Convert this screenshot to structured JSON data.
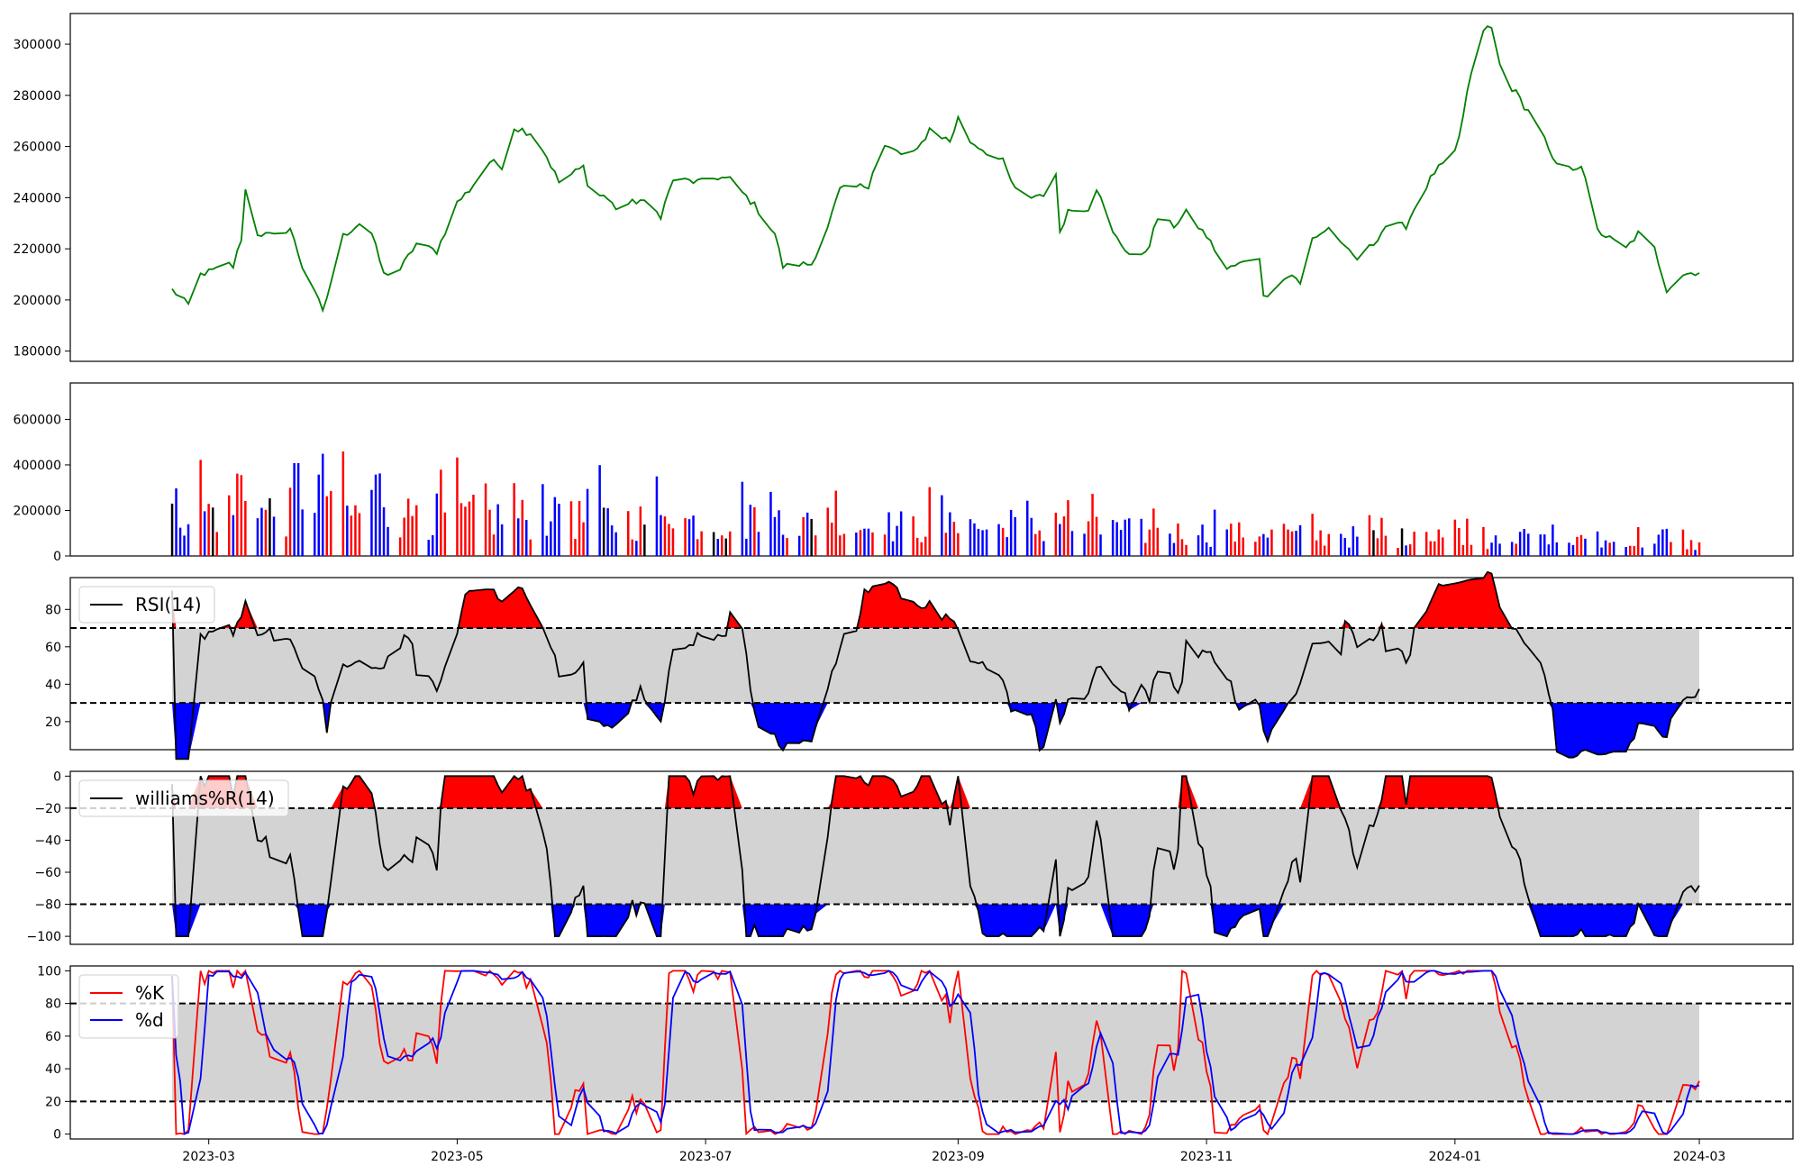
{
  "chart_data": [
    {
      "type": "line",
      "panel": "price",
      "ylim": [
        176000,
        312000
      ],
      "yticks": [
        180000,
        200000,
        220000,
        240000,
        260000,
        280000,
        300000
      ],
      "ytick_labels": [
        "180000",
        "200000",
        "220000",
        "240000",
        "260000",
        "280000",
        "300000"
      ],
      "series": [
        {
          "color": "#008000",
          "points": [
            [
              "2023-02-20",
              204000
            ],
            [
              "2023-02-24",
              198000
            ],
            [
              "2023-02-27",
              210000
            ],
            [
              "2023-03-03",
              212000
            ],
            [
              "2023-03-06",
              214000
            ],
            [
              "2023-03-07",
              213000
            ],
            [
              "2023-03-09",
              224000
            ],
            [
              "2023-03-10",
              243000
            ],
            [
              "2023-03-13",
              226000
            ],
            [
              "2023-03-17",
              225000
            ],
            [
              "2023-03-21",
              228000
            ],
            [
              "2023-03-24",
              213000
            ],
            [
              "2023-03-27",
              204000
            ],
            [
              "2023-03-29",
              195000
            ],
            [
              "2023-04-03",
              225000
            ],
            [
              "2023-04-07",
              230000
            ],
            [
              "2023-04-10",
              226000
            ],
            [
              "2023-04-13",
              210000
            ],
            [
              "2023-04-17",
              212000
            ],
            [
              "2023-04-21",
              222000
            ],
            [
              "2023-04-26",
              219000
            ],
            [
              "2023-05-01",
              238000
            ],
            [
              "2023-05-04",
              243000
            ],
            [
              "2023-05-09",
              254000
            ],
            [
              "2023-05-13",
              252000
            ],
            [
              "2023-05-14",
              268000
            ],
            [
              "2023-05-20",
              265000
            ],
            [
              "2023-05-23",
              256000
            ],
            [
              "2023-05-26",
              246000
            ],
            [
              "2023-06-01",
              252000
            ],
            [
              "2023-06-03",
              240000
            ],
            [
              "2023-06-06",
              241000
            ],
            [
              "2023-06-09",
              236000
            ],
            [
              "2023-06-15",
              239000
            ],
            [
              "2023-06-20",
              233000
            ],
            [
              "2023-06-23",
              247000
            ],
            [
              "2023-06-30",
              246000
            ],
            [
              "2023-07-04",
              248000
            ],
            [
              "2023-07-07",
              247000
            ],
            [
              "2023-07-13",
              237000
            ],
            [
              "2023-07-18",
              226000
            ],
            [
              "2023-07-20",
              213000
            ],
            [
              "2023-07-24",
              214000
            ],
            [
              "2023-07-27",
              214000
            ],
            [
              "2023-07-31",
              229000
            ],
            [
              "2023-08-03",
              243000
            ],
            [
              "2023-08-07",
              244000
            ],
            [
              "2023-08-10",
              245000
            ],
            [
              "2023-08-13",
              261000
            ],
            [
              "2023-08-18",
              257000
            ],
            [
              "2023-08-22",
              258000
            ],
            [
              "2023-08-25",
              267000
            ],
            [
              "2023-08-30",
              262000
            ],
            [
              "2023-09-01",
              271000
            ],
            [
              "2023-09-04",
              262000
            ],
            [
              "2023-09-08",
              258000
            ],
            [
              "2023-09-12",
              254000
            ],
            [
              "2023-09-15",
              243000
            ],
            [
              "2023-09-18",
              240000
            ],
            [
              "2023-09-23",
              242000
            ],
            [
              "2023-09-25",
              248000
            ],
            [
              "2023-09-26",
              227000
            ],
            [
              "2023-09-28",
              235000
            ],
            [
              "2023-10-03",
              236000
            ],
            [
              "2023-10-05",
              244000
            ],
            [
              "2023-10-09",
              226000
            ],
            [
              "2023-10-15",
              214000
            ],
            [
              "2023-10-18",
              222000
            ],
            [
              "2023-10-20",
              232000
            ],
            [
              "2023-10-24",
              229000
            ],
            [
              "2023-10-27",
              234000
            ],
            [
              "2023-11-01",
              225000
            ],
            [
              "2023-11-06",
              212000
            ],
            [
              "2023-11-09",
              214000
            ],
            [
              "2023-11-14",
              217000
            ],
            [
              "2023-11-15",
              201000
            ],
            [
              "2023-11-19",
              207000
            ],
            [
              "2023-11-22",
              210000
            ],
            [
              "2023-11-24",
              206000
            ],
            [
              "2023-11-27",
              224000
            ],
            [
              "2023-12-02",
              229000
            ],
            [
              "2023-12-05",
              220000
            ],
            [
              "2023-12-08",
              216000
            ],
            [
              "2023-12-12",
              222000
            ],
            [
              "2023-12-15",
              229000
            ],
            [
              "2023-12-20",
              229000
            ],
            [
              "2023-12-23",
              239000
            ],
            [
              "2023-12-27",
              250000
            ],
            [
              "2024-01-01",
              257000
            ],
            [
              "2024-01-02",
              263000
            ],
            [
              "2024-01-04",
              281000
            ],
            [
              "2024-01-08",
              306000
            ],
            [
              "2024-01-10",
              306000
            ],
            [
              "2024-01-12",
              292000
            ],
            [
              "2024-01-15",
              283000
            ],
            [
              "2024-01-18",
              276000
            ],
            [
              "2024-01-22",
              267000
            ],
            [
              "2024-01-25",
              254000
            ],
            [
              "2024-01-29",
              251000
            ],
            [
              "2024-02-01",
              253000
            ],
            [
              "2024-02-05",
              227000
            ],
            [
              "2024-02-08",
              224000
            ],
            [
              "2024-02-12",
              220000
            ],
            [
              "2024-02-15",
              226000
            ],
            [
              "2024-02-19",
              220000
            ],
            [
              "2024-02-22",
              204000
            ],
            [
              "2024-02-26",
              210000
            ],
            [
              "2024-03-01",
              211000
            ]
          ]
        }
      ]
    },
    {
      "type": "bar",
      "panel": "volume",
      "ylim": [
        0,
        760000
      ],
      "yticks": [
        0,
        200000,
        400000,
        600000
      ],
      "ytick_labels": [
        "0",
        "200000",
        "400000",
        "600000"
      ],
      "up_color": "#ff0000",
      "down_color": "#0000ff",
      "flat_color": "#000000"
    },
    {
      "type": "line",
      "panel": "rsi",
      "ylim": [
        5,
        97
      ],
      "yticks": [
        20,
        40,
        60,
        80
      ],
      "ytick_labels": [
        "20",
        "40",
        "60",
        "80"
      ],
      "thresholds": [
        30,
        70
      ],
      "legend": [
        "RSI(14)"
      ],
      "legend_placement": "upper-left",
      "over_color": "#ff0000",
      "under_color": "#0000ff",
      "band_color": "#d3d3d3"
    },
    {
      "type": "line",
      "panel": "williams",
      "ylim": [
        -105,
        3
      ],
      "yticks": [
        0,
        -20,
        -40,
        -60,
        -80,
        -100
      ],
      "ytick_labels": [
        "0",
        "−20",
        "−40",
        "−60",
        "−80",
        "−100"
      ],
      "thresholds": [
        -20,
        -80
      ],
      "legend": [
        "williams%R(14)"
      ],
      "legend_placement": "upper-left"
    },
    {
      "type": "line",
      "panel": "stochastic",
      "ylim": [
        -3,
        103
      ],
      "yticks": [
        0,
        20,
        40,
        60,
        80,
        100
      ],
      "ytick_labels": [
        "0",
        "20",
        "40",
        "60",
        "80",
        "100"
      ],
      "thresholds": [
        20,
        80
      ],
      "legend": [
        "%K",
        "%d"
      ],
      "legend_colors": [
        "#ff0000",
        "#0000ff"
      ],
      "legend_placement": "upper-left"
    }
  ],
  "x_axis": {
    "range": [
      "2023-01-26",
      "2024-03-24"
    ],
    "ticks": [
      "2023-03-01",
      "2023-05-01",
      "2023-07-01",
      "2023-09-01",
      "2023-11-01",
      "2024-01-01",
      "2024-03-01"
    ],
    "tick_labels": [
      "2023-03",
      "2023-05",
      "2023-07",
      "2023-09",
      "2023-11",
      "2024-01",
      "2024-03"
    ]
  }
}
